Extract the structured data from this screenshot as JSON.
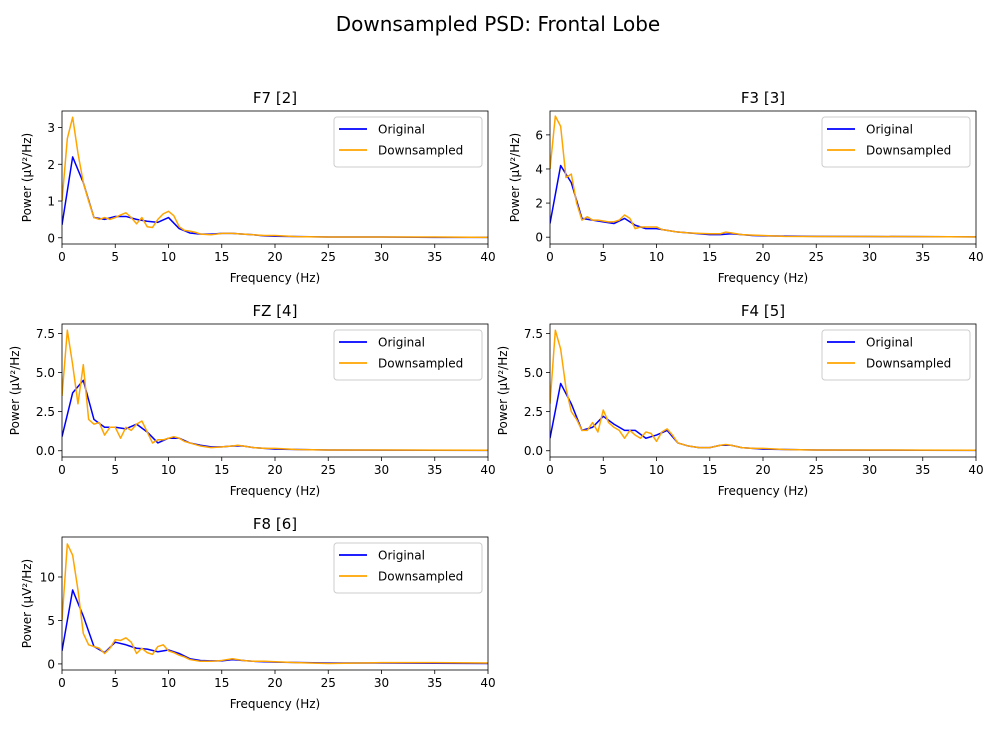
{
  "figure": {
    "title": "Downsampled PSD: Frontal Lobe"
  },
  "colors": {
    "original": "#0000ff",
    "downsampled": "#ffa500"
  },
  "chart_data": [
    {
      "type": "line",
      "title": "F7 [2]",
      "xlabel": "Frequency (Hz)",
      "ylabel": "Power (µV²/Hz)",
      "xlim": [
        0,
        40
      ],
      "ylim": [
        -0.17,
        3.45
      ],
      "xticks": [
        0,
        5,
        10,
        15,
        20,
        25,
        30,
        35,
        40
      ],
      "yticks": [
        0,
        1,
        2,
        3
      ],
      "ytick_labels": [
        "0",
        "1",
        "2",
        "3"
      ],
      "legend": "top-right",
      "series": [
        {
          "name": "Original",
          "x": [
            0,
            1,
            2,
            3,
            4,
            5,
            6,
            7,
            8,
            9,
            10,
            11,
            12,
            13,
            14,
            15,
            16,
            17,
            18,
            19,
            20,
            25,
            30,
            35,
            40
          ],
          "y": [
            0.35,
            2.2,
            1.5,
            0.55,
            0.5,
            0.58,
            0.58,
            0.5,
            0.45,
            0.42,
            0.55,
            0.25,
            0.13,
            0.1,
            0.1,
            0.12,
            0.12,
            0.1,
            0.08,
            0.05,
            0.04,
            0.02,
            0.02,
            0.01,
            0.01
          ]
        },
        {
          "name": "Downsampled",
          "x": [
            0,
            0.5,
            1,
            1.5,
            2,
            2.5,
            3,
            3.5,
            4,
            4.5,
            5,
            5.5,
            6,
            6.5,
            7,
            7.5,
            8,
            8.5,
            9,
            9.5,
            10,
            10.5,
            11,
            11.5,
            12,
            12.5,
            13,
            14,
            15,
            16,
            17,
            18,
            19,
            20,
            22,
            25,
            30,
            35,
            40
          ],
          "y": [
            1.0,
            2.7,
            3.28,
            2.3,
            1.5,
            1.0,
            0.55,
            0.5,
            0.55,
            0.5,
            0.55,
            0.62,
            0.68,
            0.55,
            0.38,
            0.55,
            0.3,
            0.28,
            0.5,
            0.65,
            0.72,
            0.6,
            0.3,
            0.2,
            0.18,
            0.15,
            0.1,
            0.08,
            0.12,
            0.12,
            0.1,
            0.08,
            0.06,
            0.06,
            0.03,
            0.02,
            0.02,
            0.02,
            0.01
          ]
        }
      ]
    },
    {
      "type": "line",
      "title": "F3 [3]",
      "xlabel": "Frequency (Hz)",
      "ylabel": "Power (µV²/Hz)",
      "xlim": [
        0,
        40
      ],
      "ylim": [
        -0.4,
        7.4
      ],
      "xticks": [
        0,
        5,
        10,
        15,
        20,
        25,
        30,
        35,
        40
      ],
      "yticks": [
        0,
        2,
        4,
        6
      ],
      "ytick_labels": [
        "0",
        "2",
        "4",
        "6"
      ],
      "legend": "top-right",
      "series": [
        {
          "name": "Original",
          "x": [
            0,
            1,
            2,
            3,
            4,
            5,
            6,
            7,
            8,
            9,
            10,
            11,
            12,
            13,
            14,
            15,
            16,
            17,
            18,
            19,
            20,
            25,
            30,
            35,
            40
          ],
          "y": [
            0.8,
            4.2,
            3.2,
            1.1,
            1.0,
            0.9,
            0.8,
            1.1,
            0.7,
            0.5,
            0.5,
            0.4,
            0.3,
            0.25,
            0.2,
            0.15,
            0.15,
            0.2,
            0.15,
            0.1,
            0.08,
            0.05,
            0.04,
            0.03,
            0.02
          ]
        },
        {
          "name": "Downsampled",
          "x": [
            0,
            0.5,
            1,
            1.5,
            2,
            2.5,
            3,
            3.5,
            4,
            4.5,
            5,
            5.5,
            6,
            6.5,
            7,
            7.5,
            8,
            8.5,
            9,
            9.5,
            10,
            10.5,
            11,
            11.5,
            12,
            13,
            14,
            15,
            16,
            16.5,
            17,
            18,
            19,
            20,
            22,
            25,
            30,
            35,
            40
          ],
          "y": [
            4.0,
            7.1,
            6.5,
            3.5,
            3.7,
            2.0,
            1.0,
            1.2,
            1.0,
            1.0,
            0.95,
            0.9,
            0.9,
            1.0,
            1.3,
            1.1,
            0.5,
            0.6,
            0.6,
            0.6,
            0.6,
            0.45,
            0.4,
            0.35,
            0.3,
            0.25,
            0.22,
            0.2,
            0.2,
            0.3,
            0.25,
            0.15,
            0.12,
            0.1,
            0.05,
            0.04,
            0.04,
            0.03,
            0.02
          ]
        }
      ]
    },
    {
      "type": "line",
      "title": "FZ [4]",
      "xlabel": "Frequency (Hz)",
      "ylabel": "Power (µV²/Hz)",
      "xlim": [
        0,
        40
      ],
      "ylim": [
        -0.4,
        8.1
      ],
      "xticks": [
        0,
        5,
        10,
        15,
        20,
        25,
        30,
        35,
        40
      ],
      "yticks": [
        0,
        2.5,
        5,
        7.5
      ],
      "ytick_labels": [
        "0.0",
        "2.5",
        "5.0",
        "7.5"
      ],
      "legend": "top-right",
      "series": [
        {
          "name": "Original",
          "x": [
            0,
            1,
            2,
            3,
            4,
            5,
            6,
            7,
            8,
            9,
            10,
            11,
            12,
            13,
            14,
            15,
            16,
            17,
            18,
            19,
            20,
            25,
            30,
            35,
            40
          ],
          "y": [
            0.9,
            3.7,
            4.5,
            2.0,
            1.5,
            1.5,
            1.4,
            1.7,
            1.2,
            0.5,
            0.8,
            0.8,
            0.5,
            0.35,
            0.25,
            0.25,
            0.3,
            0.3,
            0.2,
            0.15,
            0.1,
            0.05,
            0.04,
            0.03,
            0.02
          ]
        },
        {
          "name": "Downsampled",
          "x": [
            0,
            0.5,
            1,
            1.5,
            2,
            2.5,
            3,
            3.5,
            4,
            4.5,
            5,
            5.5,
            6,
            6.5,
            7,
            7.5,
            8,
            8.5,
            9,
            9.5,
            10,
            10.5,
            11,
            11.5,
            12,
            13,
            14,
            15,
            16,
            16.5,
            17,
            18,
            19,
            20,
            22,
            25,
            30,
            35,
            40
          ],
          "y": [
            3.5,
            7.7,
            5.5,
            3.0,
            5.5,
            2.0,
            1.7,
            1.8,
            1.0,
            1.5,
            1.5,
            0.8,
            1.5,
            1.3,
            1.7,
            1.9,
            1.2,
            0.5,
            0.7,
            0.7,
            0.8,
            0.9,
            0.8,
            0.6,
            0.5,
            0.3,
            0.2,
            0.25,
            0.3,
            0.35,
            0.3,
            0.2,
            0.15,
            0.15,
            0.08,
            0.05,
            0.05,
            0.04,
            0.03
          ]
        }
      ]
    },
    {
      "type": "line",
      "title": "F4 [5]",
      "xlabel": "Frequency (Hz)",
      "ylabel": "Power (µV²/Hz)",
      "xlim": [
        0,
        40
      ],
      "ylim": [
        -0.4,
        8.1
      ],
      "xticks": [
        0,
        5,
        10,
        15,
        20,
        25,
        30,
        35,
        40
      ],
      "yticks": [
        0,
        2.5,
        5,
        7.5
      ],
      "ytick_labels": [
        "0.0",
        "2.5",
        "5.0",
        "7.5"
      ],
      "legend": "top-right",
      "series": [
        {
          "name": "Original",
          "x": [
            0,
            1,
            2,
            3,
            4,
            5,
            6,
            7,
            8,
            9,
            10,
            11,
            12,
            13,
            14,
            15,
            16,
            17,
            18,
            19,
            20,
            25,
            30,
            35,
            40
          ],
          "y": [
            0.8,
            4.3,
            3.0,
            1.3,
            1.5,
            2.2,
            1.7,
            1.3,
            1.3,
            0.8,
            1.0,
            1.3,
            0.5,
            0.3,
            0.2,
            0.2,
            0.35,
            0.35,
            0.2,
            0.15,
            0.1,
            0.05,
            0.04,
            0.03,
            0.02
          ]
        },
        {
          "name": "Downsampled",
          "x": [
            0,
            0.5,
            1,
            1.5,
            2,
            2.5,
            3,
            3.5,
            4,
            4.5,
            5,
            5.5,
            6,
            6.5,
            7,
            7.5,
            8,
            8.5,
            9,
            9.5,
            10,
            10.5,
            11,
            11.5,
            12,
            13,
            14,
            15,
            16,
            16.5,
            17,
            18,
            19,
            20,
            22,
            25,
            30,
            35,
            40
          ],
          "y": [
            3.0,
            7.7,
            6.5,
            4.0,
            2.5,
            2.0,
            1.3,
            1.3,
            1.8,
            1.2,
            2.6,
            1.8,
            1.5,
            1.3,
            0.8,
            1.3,
            1.0,
            0.8,
            1.2,
            1.1,
            0.6,
            1.2,
            1.4,
            1.0,
            0.5,
            0.3,
            0.2,
            0.2,
            0.35,
            0.4,
            0.35,
            0.2,
            0.15,
            0.15,
            0.08,
            0.05,
            0.05,
            0.04,
            0.03
          ]
        }
      ]
    },
    {
      "type": "line",
      "title": "F8 [6]",
      "xlabel": "Frequency (Hz)",
      "ylabel": "Power (µV²/Hz)",
      "xlim": [
        0,
        40
      ],
      "ylim": [
        -0.7,
        14.6
      ],
      "xticks": [
        0,
        5,
        10,
        15,
        20,
        25,
        30,
        35,
        40
      ],
      "yticks": [
        0,
        5,
        10
      ],
      "ytick_labels": [
        "0",
        "5",
        "10"
      ],
      "legend": "top-right",
      "series": [
        {
          "name": "Original",
          "x": [
            0,
            1,
            2,
            3,
            4,
            5,
            6,
            7,
            8,
            9,
            10,
            11,
            12,
            13,
            14,
            15,
            16,
            17,
            18,
            19,
            20,
            25,
            30,
            35,
            40
          ],
          "y": [
            1.5,
            8.5,
            5.5,
            2.0,
            1.3,
            2.5,
            2.2,
            1.8,
            1.7,
            1.4,
            1.6,
            1.2,
            0.6,
            0.4,
            0.35,
            0.35,
            0.5,
            0.4,
            0.3,
            0.25,
            0.2,
            0.1,
            0.1,
            0.08,
            0.05
          ]
        },
        {
          "name": "Downsampled",
          "x": [
            0,
            0.5,
            1,
            1.5,
            2,
            2.5,
            3,
            3.5,
            4,
            4.5,
            5,
            5.5,
            6,
            6.5,
            7,
            7.5,
            8,
            8.5,
            9,
            9.5,
            10,
            10.5,
            11,
            11.5,
            12,
            13,
            14,
            15,
            16,
            17,
            18,
            19,
            20,
            22,
            25,
            28,
            30,
            35,
            40
          ],
          "y": [
            5.0,
            13.8,
            12.5,
            8.5,
            3.5,
            2.2,
            2.0,
            1.8,
            1.2,
            1.8,
            2.8,
            2.7,
            3.0,
            2.5,
            1.2,
            1.8,
            1.3,
            1.1,
            2.0,
            2.2,
            1.5,
            1.3,
            1.0,
            0.8,
            0.5,
            0.3,
            0.3,
            0.4,
            0.6,
            0.4,
            0.3,
            0.3,
            0.25,
            0.15,
            0.05,
            0.1,
            0.15,
            0.15,
            0.1
          ]
        }
      ]
    }
  ]
}
